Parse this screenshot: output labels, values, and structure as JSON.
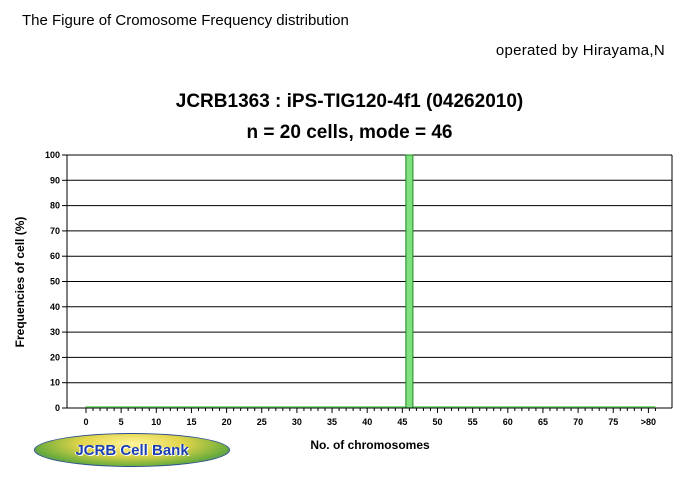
{
  "header": {
    "title": "The Figure of Cromosome Frequency distribution",
    "operator": "operated by Hirayama,N"
  },
  "logo": {
    "text": "JCRB Cell Bank"
  },
  "chart_data": {
    "type": "bar",
    "title": "JCRB1363 : iPS-TIG120-4f1 (04262010)",
    "subtitle": "n = 20 cells, mode = 46",
    "xlabel": "No. of chromosomes",
    "ylabel": "Frequencies of cell (%)",
    "xlim": [
      0,
      81
    ],
    "ylim": [
      0,
      100
    ],
    "x_ticks": [
      "0",
      "5",
      "10",
      "15",
      "20",
      "25",
      "30",
      "35",
      "40",
      "45",
      "50",
      "55",
      "60",
      "65",
      "70",
      "75",
      ">80"
    ],
    "y_ticks": [
      "0",
      "10",
      "20",
      "30",
      "40",
      "50",
      "60",
      "70",
      "80",
      "90",
      "100"
    ],
    "grid": true,
    "bar_color": "#7ee07e",
    "bar_edge_color": "#1a8a1a",
    "bars": [
      {
        "x": 46,
        "value": 100
      }
    ]
  }
}
